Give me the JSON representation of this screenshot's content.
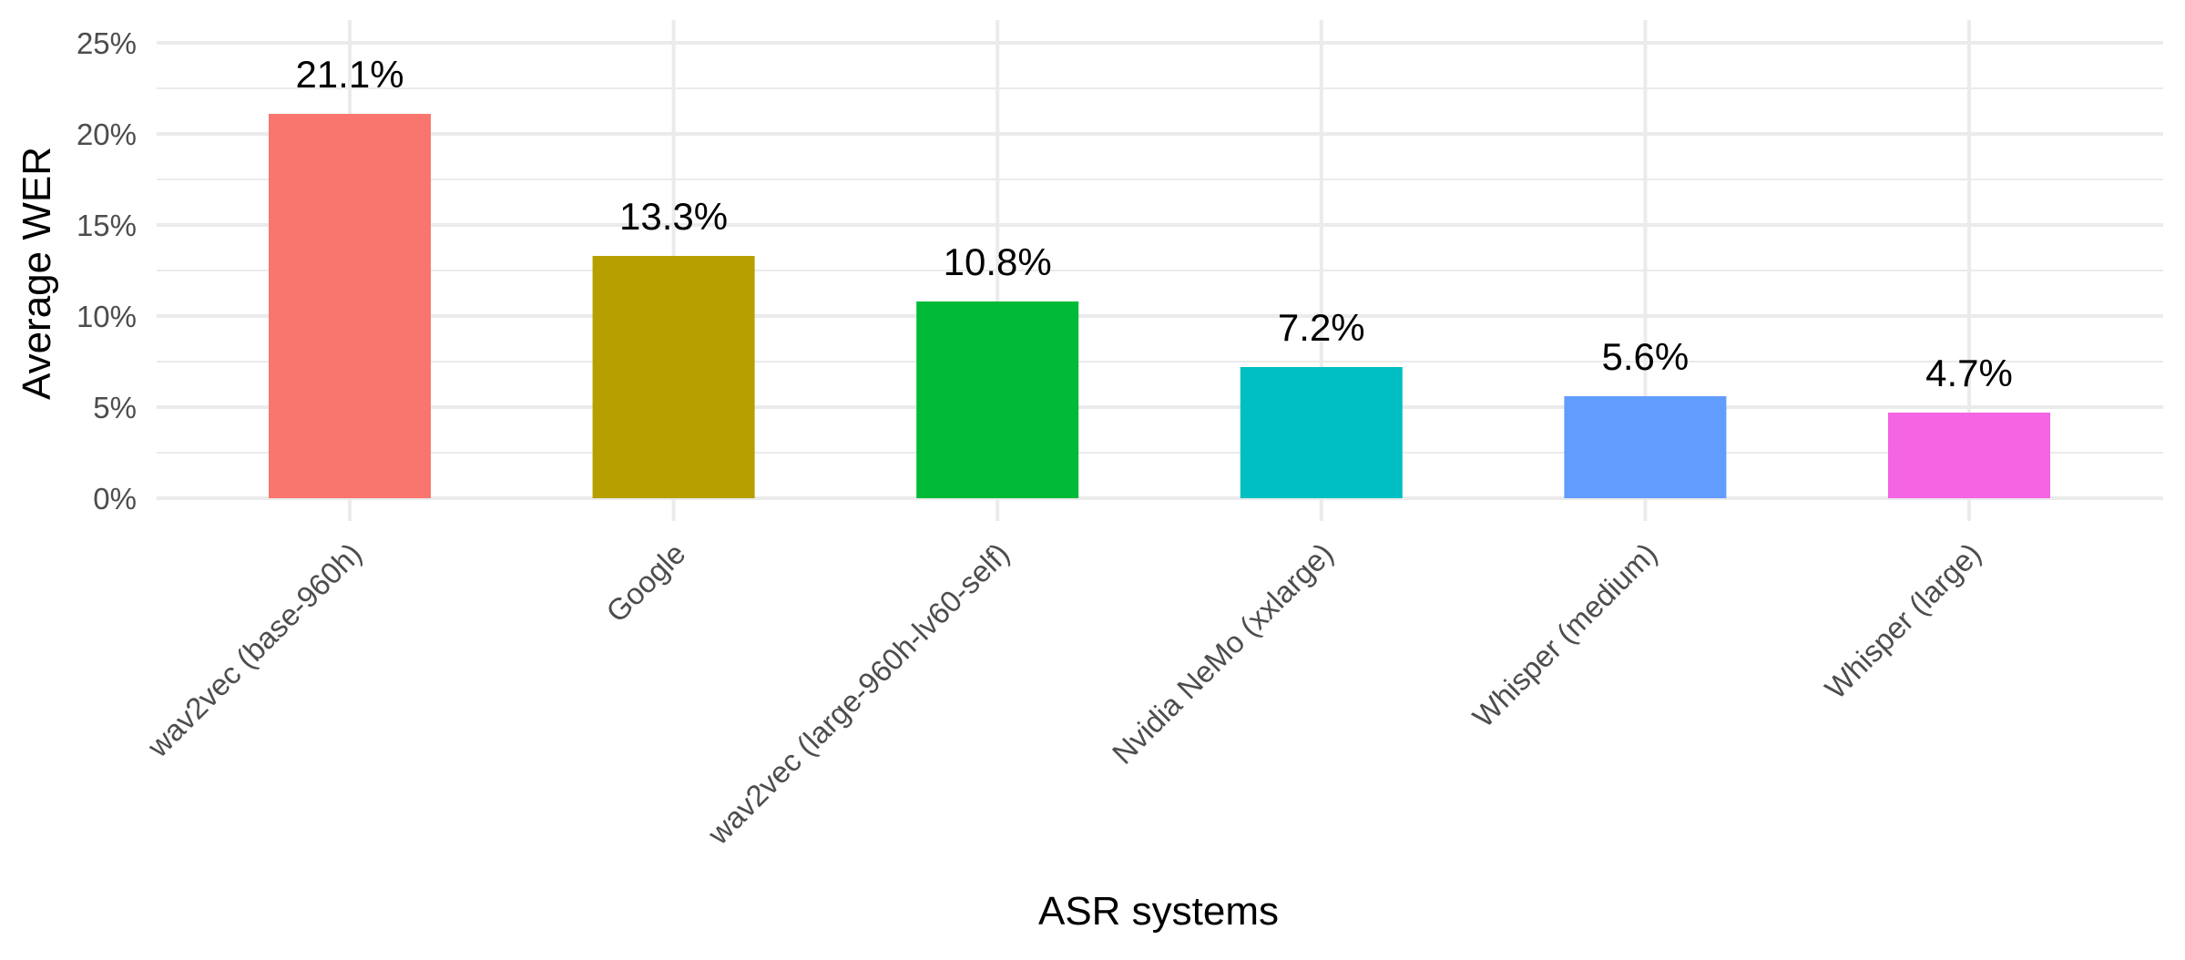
{
  "chart_data": {
    "type": "bar",
    "categories": [
      "wav2vec (base-960h)",
      "Google",
      "wav2vec (large-960h-lv60-self)",
      "Nvidia NeMo (xxlarge)",
      "Whisper (medium)",
      "Whisper (large)"
    ],
    "values": [
      21.1,
      13.3,
      10.8,
      7.2,
      5.6,
      4.7
    ],
    "data_labels": [
      "21.1%",
      "13.3%",
      "10.8%",
      "7.2%",
      "5.6%",
      "4.7%"
    ],
    "colors": [
      "#F8766D",
      "#B79F00",
      "#00BA38",
      "#00BFC4",
      "#619CFF",
      "#F564E3"
    ],
    "xlabel": "ASR systems",
    "ylabel": "Average WER",
    "ylim": [
      0,
      25
    ],
    "yticks": [
      0,
      5,
      10,
      15,
      20,
      25
    ],
    "ytick_labels": [
      "0%",
      "5%",
      "10%",
      "15%",
      "20%",
      "25%"
    ],
    "grid": true,
    "legend": "none"
  }
}
